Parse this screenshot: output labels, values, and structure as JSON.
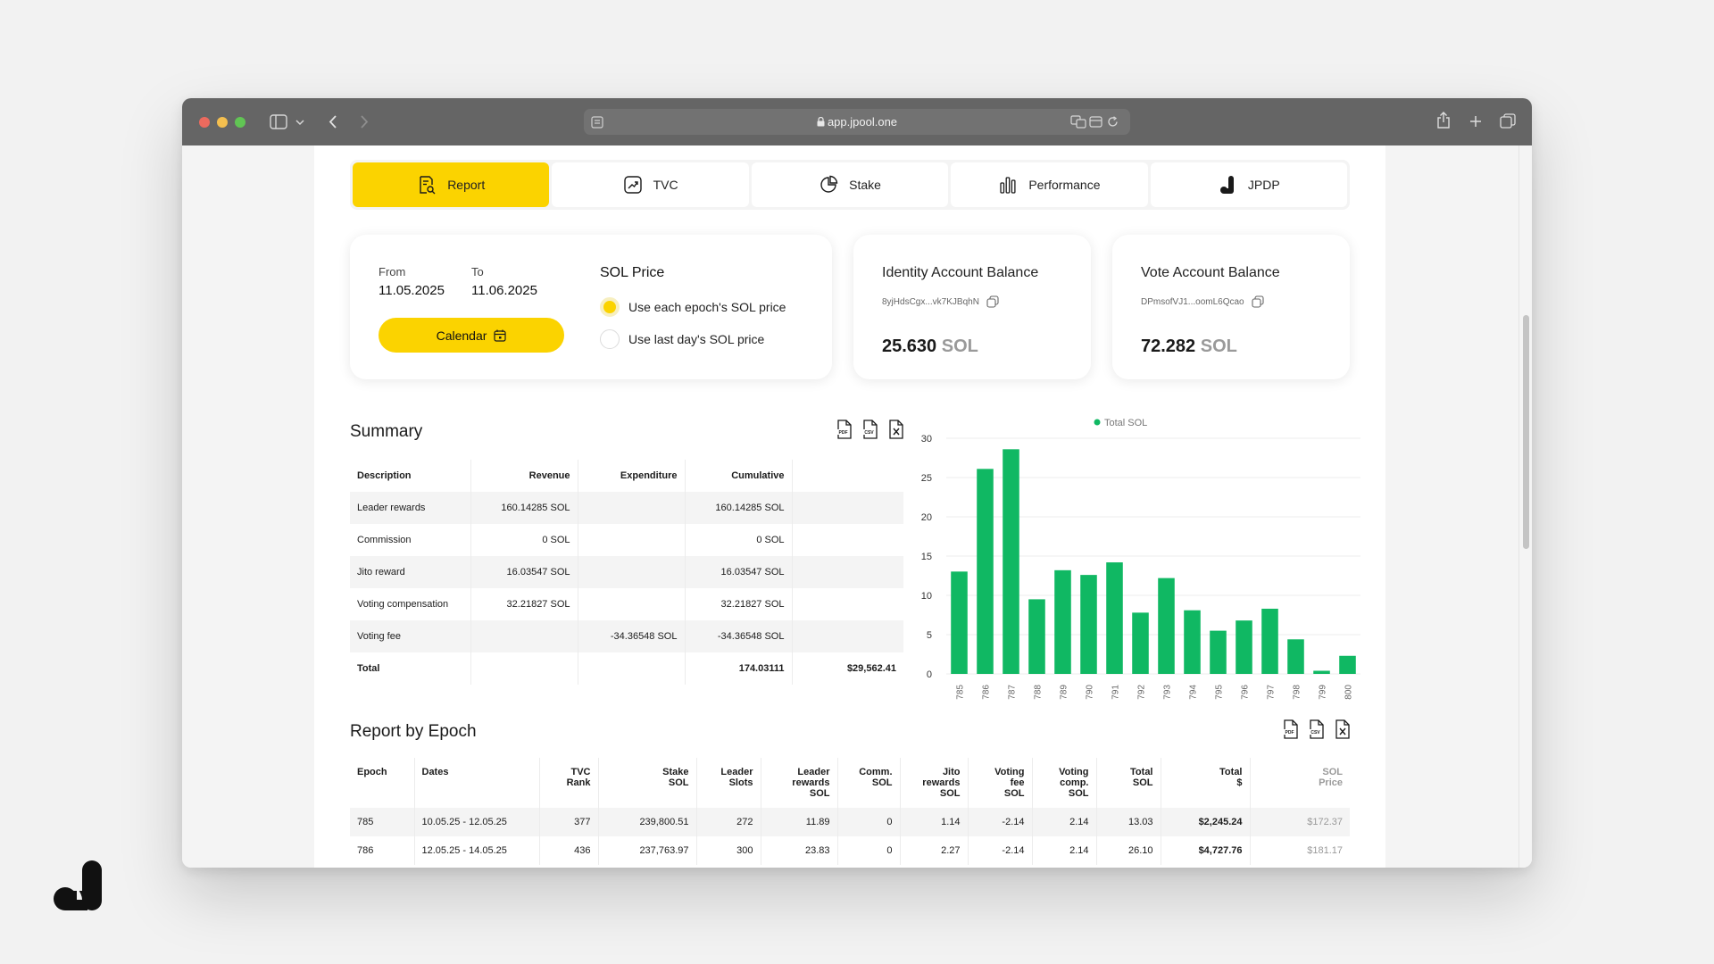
{
  "browser": {
    "url": "app.jpool.one"
  },
  "tabs": [
    {
      "label": "Report",
      "icon": "report-icon",
      "active": true
    },
    {
      "label": "TVC",
      "icon": "chart-growth-icon",
      "active": false
    },
    {
      "label": "Stake",
      "icon": "pie-chart-icon",
      "active": false
    },
    {
      "label": "Performance",
      "icon": "bar-chart-icon",
      "active": false
    },
    {
      "label": "JPDP",
      "icon": "jpool-logo-icon",
      "active": false
    }
  ],
  "date_card": {
    "from_label": "From",
    "from_value": "11.05.2025",
    "to_label": "To",
    "to_value": "11.06.2025",
    "calendar_label": "Calendar",
    "sol_price_title": "SOL Price",
    "option_each": "Use each epoch's SOL price",
    "option_last": "Use last day's SOL price",
    "selected_option": "each"
  },
  "identity_card": {
    "title": "Identity Account Balance",
    "address": "8yjHdsCgx...vk7KJBqhN",
    "value": "25.630",
    "unit": "SOL"
  },
  "vote_card": {
    "title": "Vote Account Balance",
    "address": "DPmsofVJ1...oomL6Qcao",
    "value": "72.282",
    "unit": "SOL"
  },
  "summary": {
    "title": "Summary",
    "headers": [
      "Description",
      "Revenue",
      "Expenditure",
      "Cumulative",
      ""
    ],
    "rows": [
      [
        "Leader rewards",
        "160.14285 SOL",
        "",
        "160.14285 SOL",
        ""
      ],
      [
        "Commission",
        "0 SOL",
        "",
        "0 SOL",
        ""
      ],
      [
        "Jito reward",
        "16.03547 SOL",
        "",
        "16.03547 SOL",
        ""
      ],
      [
        "Voting compensation",
        "32.21827 SOL",
        "",
        "32.21827 SOL",
        ""
      ],
      [
        "Voting fee",
        "",
        "-34.36548 SOL",
        "-34.36548 SOL",
        ""
      ],
      [
        "Total",
        "",
        "",
        "174.03111",
        "$29,562.41"
      ]
    ]
  },
  "chart_data": {
    "type": "bar",
    "title": "",
    "xlabel": "",
    "ylabel": "",
    "legend": "top-center",
    "grid": true,
    "ylim": [
      0,
      30
    ],
    "yticks": [
      0,
      5,
      10,
      15,
      20,
      25,
      30
    ],
    "categories": [
      "785",
      "786",
      "787",
      "788",
      "789",
      "790",
      "791",
      "792",
      "793",
      "794",
      "795",
      "796",
      "797",
      "798",
      "799",
      "800"
    ],
    "series": [
      {
        "name": "Total SOL",
        "color": "#10b863",
        "values": [
          13.03,
          26.1,
          28.6,
          9.5,
          13.2,
          12.6,
          14.2,
          7.8,
          12.2,
          8.1,
          5.5,
          6.8,
          8.3,
          4.4,
          0.4,
          2.3
        ]
      }
    ]
  },
  "epoch_report": {
    "title": "Report by Epoch",
    "headers": [
      [
        "Epoch"
      ],
      [
        "Dates"
      ],
      [
        "TVC",
        "Rank"
      ],
      [
        "Stake",
        "SOL"
      ],
      [
        "Leader",
        "Slots"
      ],
      [
        "Leader",
        "rewards",
        "SOL"
      ],
      [
        "Comm.",
        "SOL"
      ],
      [
        "Jito",
        "rewards",
        "SOL"
      ],
      [
        "Voting",
        "fee",
        "SOL"
      ],
      [
        "Voting",
        "comp.",
        "SOL"
      ],
      [
        "Total",
        "SOL"
      ],
      [
        "Total",
        "$"
      ],
      [
        "SOL",
        "Price"
      ]
    ],
    "rows": [
      [
        "785",
        "10.05.25 - 12.05.25",
        "377",
        "239,800.51",
        "272",
        "11.89",
        "0",
        "1.14",
        "-2.14",
        "2.14",
        "13.03",
        "$2,245.24",
        "$172.37"
      ],
      [
        "786",
        "12.05.25 - 14.05.25",
        "436",
        "237,763.97",
        "300",
        "23.83",
        "0",
        "2.27",
        "-2.14",
        "2.14",
        "26.10",
        "$4,727.76",
        "$181.17"
      ]
    ]
  },
  "colors": {
    "accent": "#fbd300",
    "bar": "#10b863"
  }
}
